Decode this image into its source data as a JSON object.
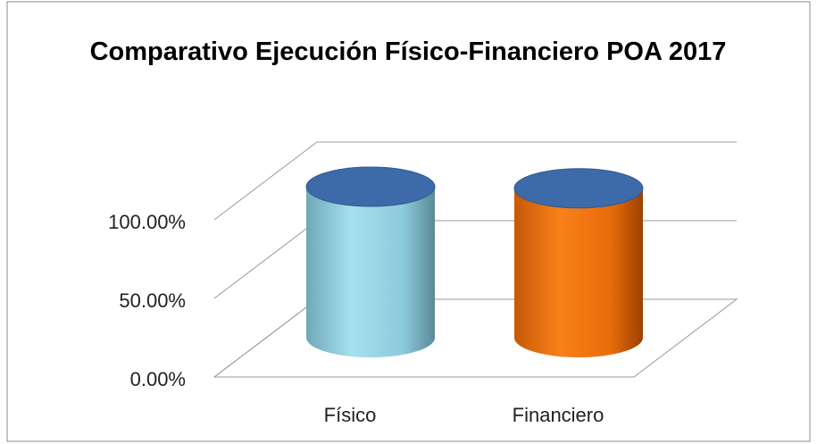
{
  "chart_data": {
    "type": "bar3d",
    "title": "Comparativo Ejecución Físico-Financiero POA 2017",
    "categories": [
      "Físico",
      "Financiero"
    ],
    "values": [
      96,
      95
    ],
    "colors": [
      "#8fd3e6",
      "#f2740f"
    ],
    "cap_color": "#3d6aa8",
    "ylim": [
      0,
      100
    ],
    "yticks": [
      {
        "value": 0,
        "label": "0.00%"
      },
      {
        "value": 50,
        "label": "50.00%"
      },
      {
        "value": 100,
        "label": "100.00%"
      }
    ],
    "grid": true
  }
}
